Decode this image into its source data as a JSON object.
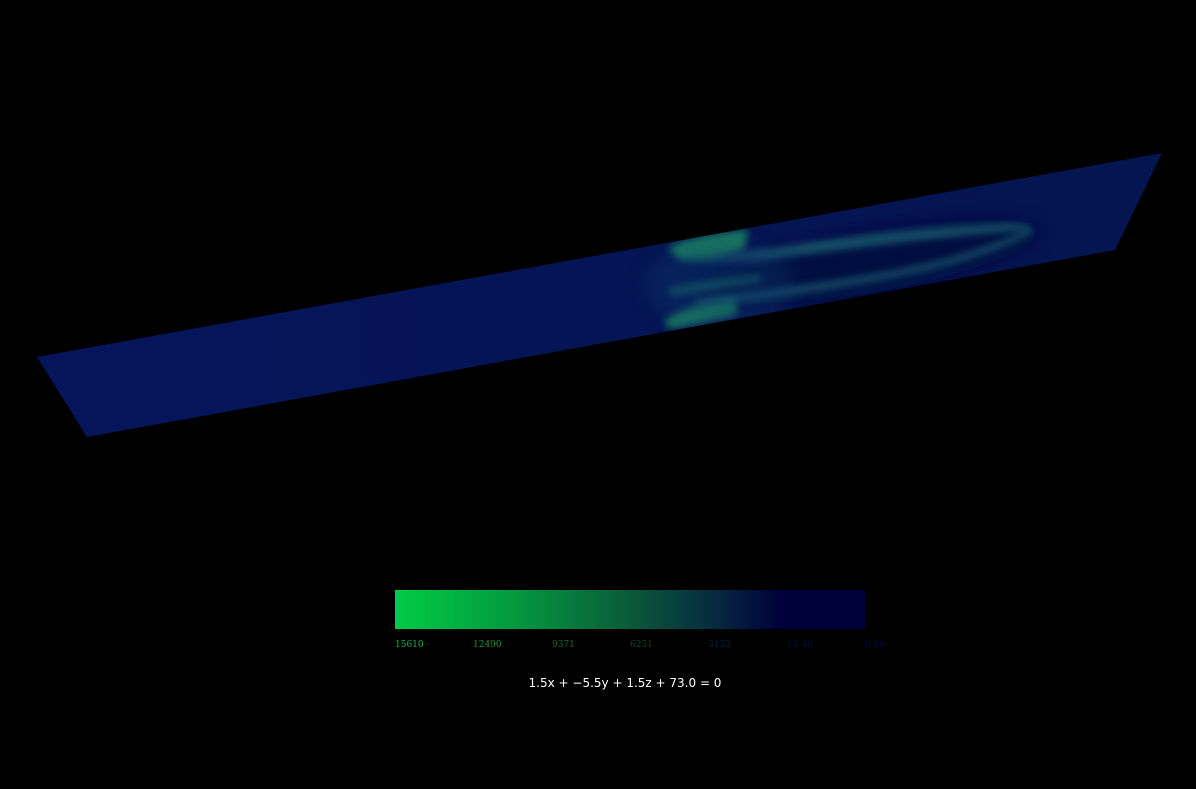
{
  "viewer": {
    "background": "#000000",
    "plane_equation": "1.5x + −5.5y + 1.5z + 73.0 = 0"
  },
  "colorbar": {
    "max_color": "#00cc44",
    "min_color": "#00003a",
    "ticks": [
      {
        "label": "15610",
        "color": "#1db74a"
      },
      {
        "label": "12490",
        "color": "#16953f"
      },
      {
        "label": "9371",
        "color": "#0f6c34"
      },
      {
        "label": "6251",
        "color": "#0b4a2e"
      },
      {
        "label": "3132",
        "color": "#062338"
      },
      {
        "label": "12.46",
        "color": "#04123a"
      },
      {
        "label": "0.00",
        "color": "#020a3a"
      }
    ]
  }
}
